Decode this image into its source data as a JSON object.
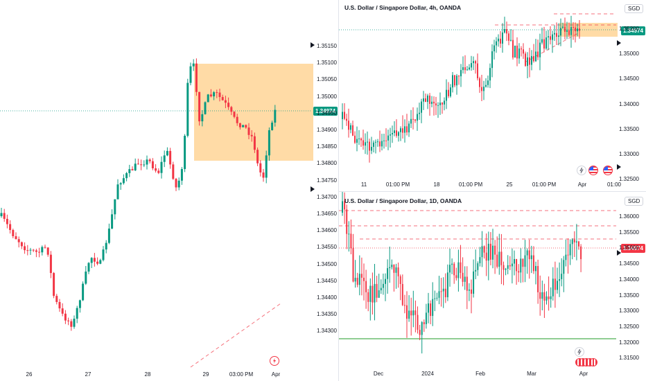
{
  "panes": {
    "left": {
      "title": "",
      "price_labels": [
        {
          "text": "1.35150",
          "value": 1.3515
        },
        {
          "text": "1.35100",
          "value": 1.351
        },
        {
          "text": "1.35050",
          "value": 1.3505
        },
        {
          "text": "1.35000",
          "value": 1.35
        },
        {
          "text": "1.34950",
          "value": 1.3495
        },
        {
          "text": "1.34900",
          "value": 1.349
        },
        {
          "text": "1.34850",
          "value": 1.3485
        },
        {
          "text": "1.34800",
          "value": 1.348
        },
        {
          "text": "1.34750",
          "value": 1.3475
        },
        {
          "text": "1.34700",
          "value": 1.347
        },
        {
          "text": "1.34650",
          "value": 1.3465
        },
        {
          "text": "1.34600",
          "value": 1.346
        },
        {
          "text": "1.34550",
          "value": 1.3455
        },
        {
          "text": "1.34500",
          "value": 1.345
        },
        {
          "text": "1.34450",
          "value": 1.3445
        },
        {
          "text": "1.34400",
          "value": 1.344
        },
        {
          "text": "1.34350",
          "value": 1.3435
        },
        {
          "text": "1.34300",
          "value": 1.343
        }
      ],
      "time_labels": [
        "26",
        "27",
        "28",
        "29",
        "03:00 PM",
        "Apr"
      ],
      "last_price": "1.34974"
    },
    "top_right": {
      "title": "U.S. Dollar / Singapore Dollar, 4h, OANDA",
      "currency": "SGD",
      "price_labels": [
        {
          "text": "1.35200",
          "value": 1.352
        },
        {
          "text": "1.35000",
          "value": 1.35
        },
        {
          "text": "1.34500",
          "value": 1.345
        },
        {
          "text": "1.34000",
          "value": 1.34
        },
        {
          "text": "1.33500",
          "value": 1.335
        },
        {
          "text": "1.33000",
          "value": 1.33
        },
        {
          "text": "1.32500",
          "value": 1.325
        }
      ],
      "time_labels": [
        "11",
        "01:00 PM",
        "18",
        "01:00 PM",
        "25",
        "01:00 PM",
        "Apr",
        "01:00"
      ],
      "last_price": "1.34974"
    },
    "bottom_right": {
      "title": "U.S. Dollar / Singapore Dollar, 1D, OANDA",
      "currency": "SGD",
      "price_labels": [
        {
          "text": "1.36000",
          "value": 1.36
        },
        {
          "text": "1.35500",
          "value": 1.355
        },
        {
          "text": "1.35000",
          "value": 1.35
        },
        {
          "text": "1.34500",
          "value": 1.345
        },
        {
          "text": "1.34000",
          "value": 1.34
        },
        {
          "text": "1.33500",
          "value": 1.335
        },
        {
          "text": "1.33000",
          "value": 1.33
        },
        {
          "text": "1.32500",
          "value": 1.325
        },
        {
          "text": "1.32000",
          "value": 1.32
        },
        {
          "text": "1.31500",
          "value": 1.315
        }
      ],
      "time_labels": [
        "Dec",
        "2024",
        "Feb",
        "Mar",
        "Apr"
      ],
      "last_price": "1.34974"
    }
  },
  "colors": {
    "up": "#089981",
    "down": "#f23645",
    "zone": "#ffb74d",
    "last_badge_green": "#089981",
    "last_badge_red": "#f23645",
    "support": "#4caf50"
  },
  "icons": [
    "lightning-icon",
    "us-flag-icon",
    "arrow-right-icon"
  ]
}
